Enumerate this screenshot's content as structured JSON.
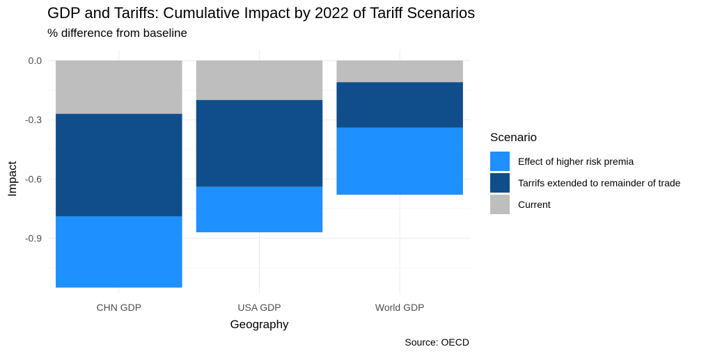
{
  "chart_data": {
    "type": "bar",
    "stacked": true,
    "title": "GDP and Tariffs: Cumulative Impact by 2022 of Tariff Scenarios",
    "subtitle": "% difference from baseline",
    "xlabel": "Geography",
    "ylabel": "Impact",
    "caption": "Source: OECD",
    "categories": [
      "CHN GDP",
      "USA GDP",
      "World GDP"
    ],
    "ylim": [
      -1.14,
      0.0
    ],
    "yticks": [
      0.0,
      -0.3,
      -0.6,
      -0.9
    ],
    "ytick_labels": [
      "0.0",
      "-0.3",
      "-0.6",
      "-0.9"
    ],
    "grid": true,
    "legend_title": "Scenario",
    "legend_position": "right",
    "series": [
      {
        "name": "Current",
        "color": "#bebebe",
        "values": [
          -0.27,
          -0.2,
          -0.11
        ]
      },
      {
        "name": "Tarrifs extended to remainder of trade",
        "color": "#104e8b",
        "values": [
          -0.52,
          -0.44,
          -0.23
        ]
      },
      {
        "name": "Effect of higher risk premia",
        "color": "#1e90ff",
        "values": [
          -0.36,
          -0.23,
          -0.34
        ]
      }
    ],
    "legend_order": [
      "Effect of higher risk premia",
      "Tarrifs extended to remainder of trade",
      "Current"
    ]
  }
}
